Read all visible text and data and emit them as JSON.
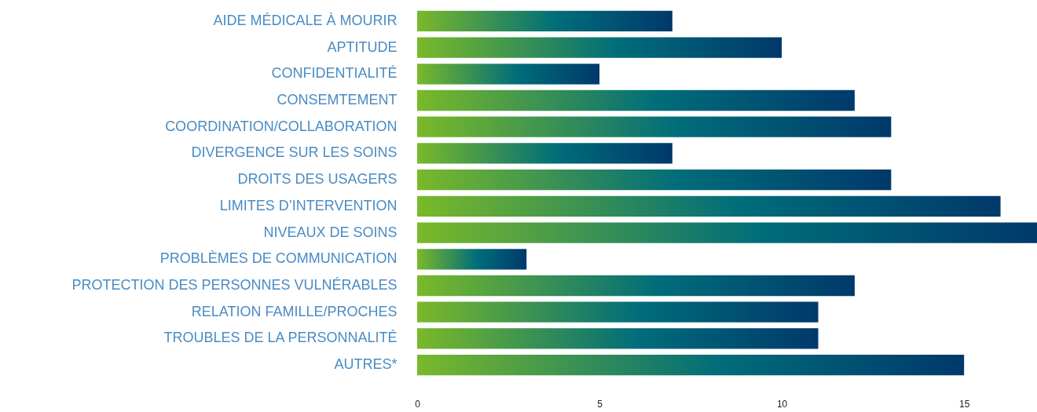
{
  "chart_data": {
    "type": "bar",
    "orientation": "horizontal",
    "categories": [
      "AIDE MÉDICALE À MOURIR",
      "APTITUDE",
      "CONFIDENTIALITÉ",
      "CONSEMTEMENT",
      "COORDINATION/COLLABORATION",
      "DIVERGENCE SUR LES SOINS",
      "DROITS DES USAGERS",
      "LIMITES D’INTERVENTION",
      "NIVEAUX DE SOINS",
      "PROBLÈMES DE COMMUNICATION",
      "PROTECTION DES PERSONNES VULNÉRABLES",
      "RELATION FAMILLE/PROCHES",
      "TROUBLES DE LA PERSONNALITÉ",
      "AUTRES*"
    ],
    "series": [
      {
        "color": "#00396b",
        "values": [
          7,
          10,
          5,
          12,
          13,
          7,
          13,
          16,
          17,
          3,
          12,
          11,
          11,
          15
        ]
      }
    ],
    "xlim": [
      0,
      17
    ],
    "xticks": [
      0,
      5,
      10,
      15
    ]
  }
}
